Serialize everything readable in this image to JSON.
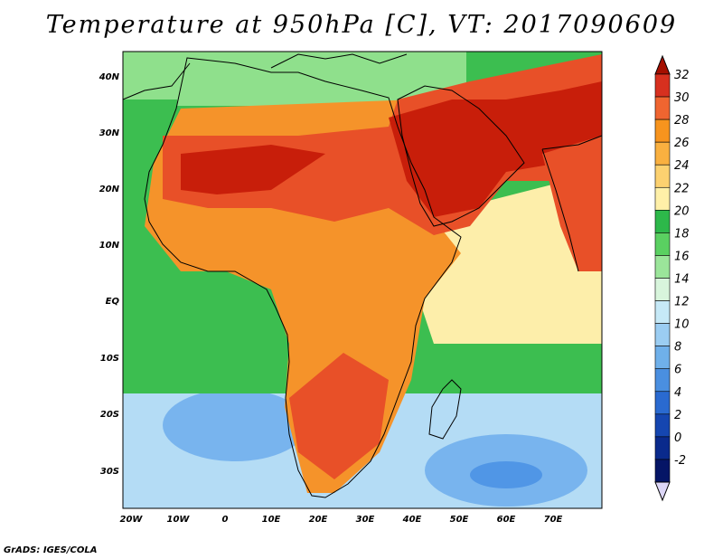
{
  "title": "Temperature at 950hPa [C], VT: 2017090609",
  "credit": "GrADS: IGES/COLA",
  "lat_ticks": [
    "40N",
    "30N",
    "20N",
    "10N",
    "EQ",
    "10S",
    "20S",
    "30S"
  ],
  "lon_ticks": [
    "20W",
    "10W",
    "0",
    "10E",
    "20E",
    "30E",
    "40E",
    "50E",
    "60E",
    "70E"
  ],
  "colorbar": {
    "labels": [
      "32",
      "30",
      "28",
      "26",
      "24",
      "22",
      "20",
      "18",
      "16",
      "14",
      "12",
      "10",
      "8",
      "6",
      "4",
      "2",
      "0",
      "-2"
    ],
    "colors": [
      "#a50f00",
      "#d7301f",
      "#ef6530",
      "#f7941e",
      "#f9b040",
      "#fcd170",
      "#fff0a8",
      "#2db84a",
      "#5ad061",
      "#9be59a",
      "#d8f5dc",
      "#c6e9f7",
      "#9bcdf2",
      "#6fb0ea",
      "#4a8fe0",
      "#2a6ad0",
      "#1546b0",
      "#0a2a8c",
      "#051566"
    ],
    "top_arrow_color": "#a50f00",
    "bottom_arrow_color": "#dcd6f6"
  },
  "colors": {
    "hot_core": "#c81e0a",
    "hot": "#e85028",
    "warm": "#f5932a",
    "mild": "#fbc158",
    "pale_yellow": "#fdeeaa",
    "green": "#3cbe50",
    "light_green": "#8fe08c",
    "pale_cyan": "#d4f5e6",
    "light_blue": "#b4dcf5",
    "blue": "#78b4ee",
    "deep_blue": "#5096e6"
  }
}
